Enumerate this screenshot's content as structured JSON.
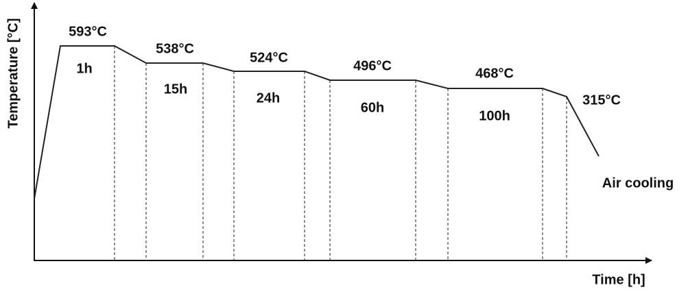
{
  "x_axis_label": "Time [h]",
  "y_axis_label": "Temperature [°C]",
  "stages": [
    {
      "temperature": "593°C",
      "duration": "1h"
    },
    {
      "temperature": "538°C",
      "duration": "15h"
    },
    {
      "temperature": "524°C",
      "duration": "24h"
    },
    {
      "temperature": "496°C",
      "duration": "60h"
    },
    {
      "temperature": "468°C",
      "duration": "100h"
    }
  ],
  "final_temperature": "315°C",
  "cooling": "Air cooling"
}
